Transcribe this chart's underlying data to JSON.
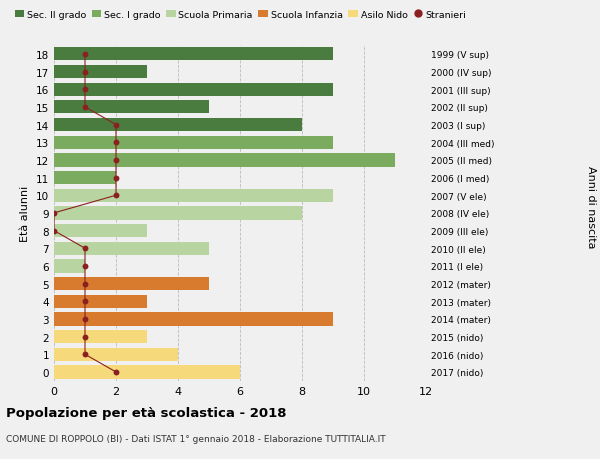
{
  "ages": [
    18,
    17,
    16,
    15,
    14,
    13,
    12,
    11,
    10,
    9,
    8,
    7,
    6,
    5,
    4,
    3,
    2,
    1,
    0
  ],
  "right_labels": [
    "1999 (V sup)",
    "2000 (IV sup)",
    "2001 (III sup)",
    "2002 (II sup)",
    "2003 (I sup)",
    "2004 (III med)",
    "2005 (II med)",
    "2006 (I med)",
    "2007 (V ele)",
    "2008 (IV ele)",
    "2009 (III ele)",
    "2010 (II ele)",
    "2011 (I ele)",
    "2012 (mater)",
    "2013 (mater)",
    "2014 (mater)",
    "2015 (nido)",
    "2016 (nido)",
    "2017 (nido)"
  ],
  "bar_values": [
    9,
    3,
    9,
    5,
    8,
    9,
    11,
    2,
    9,
    8,
    3,
    5,
    1,
    5,
    3,
    9,
    3,
    4,
    6
  ],
  "bar_colors": [
    "#4a7c3f",
    "#4a7c3f",
    "#4a7c3f",
    "#4a7c3f",
    "#4a7c3f",
    "#7aab5e",
    "#7aab5e",
    "#7aab5e",
    "#b8d4a0",
    "#b8d4a0",
    "#b8d4a0",
    "#b8d4a0",
    "#b8d4a0",
    "#d97b2e",
    "#d97b2e",
    "#d97b2e",
    "#f5d97a",
    "#f5d97a",
    "#f5d97a"
  ],
  "stranieri_values": [
    1,
    1,
    1,
    1,
    2,
    2,
    2,
    2,
    2,
    0,
    0,
    1,
    1,
    1,
    1,
    1,
    1,
    1,
    2
  ],
  "stranieri_color": "#8b2020",
  "legend_labels": [
    "Sec. II grado",
    "Sec. I grado",
    "Scuola Primaria",
    "Scuola Infanzia",
    "Asilo Nido",
    "Stranieri"
  ],
  "legend_colors": [
    "#4a7c3f",
    "#7aab5e",
    "#b8d4a0",
    "#d97b2e",
    "#f5d97a",
    "#8b2020"
  ],
  "ylabel": "Età alunni",
  "right_ylabel": "Anni di nascita",
  "title": "Popolazione per età scolastica - 2018",
  "subtitle": "COMUNE DI ROPPOLO (BI) - Dati ISTAT 1° gennaio 2018 - Elaborazione TUTTITALIA.IT",
  "xlim": [
    0,
    12
  ],
  "background_color": "#f0f0f0",
  "bar_height": 0.75,
  "xticks": [
    0,
    2,
    4,
    6,
    8,
    10,
    12
  ]
}
